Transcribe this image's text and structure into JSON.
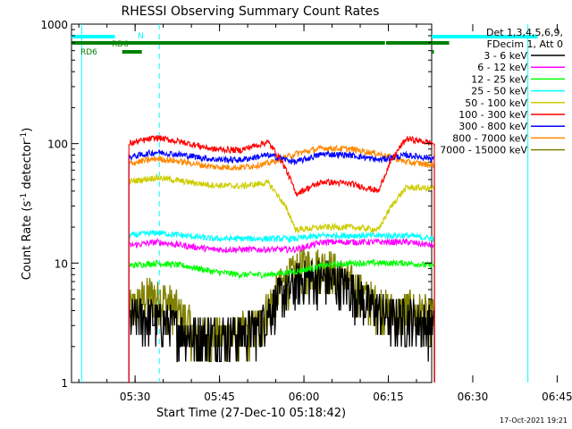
{
  "chart_data": {
    "type": "line",
    "title": "RHESSI Observing Summary Count Rates",
    "xlabel": "Start Time (27-Dec-10 05:18:42)",
    "ylabel_main": "Count Rate (s",
    "ylabel_sup1": "-1",
    "ylabel_mid": " detector",
    "ylabel_sup2": "-1",
    "ylabel_end": ")",
    "y_scale": "log",
    "ylim": [
      1,
      1000
    ],
    "xlim_minutes": [
      0,
      64
    ],
    "x_ticks": [
      {
        "label": "05:30",
        "min": 11.3
      },
      {
        "label": "05:45",
        "min": 26.3
      },
      {
        "label": "06:00",
        "min": 41.3
      },
      {
        "label": "06:15",
        "min": 56.3
      },
      {
        "label": "06:30",
        "min": 71.3
      },
      {
        "label": "06:45",
        "min": 86.3
      }
    ],
    "y_ticks": [
      {
        "label": "1",
        "value": 1
      },
      {
        "label": "10",
        "value": 10
      },
      {
        "label": "100",
        "value": 100
      },
      {
        "label": "1000",
        "value": 1000
      }
    ],
    "legend_header": [
      "Det 1,3,4,5,6,9,",
      "FDecim 1, Att 0"
    ],
    "legend_placement": "right",
    "series": [
      {
        "name": "3 - 6 keV",
        "color": "#000000",
        "values": [
          3.5,
          3.5,
          3.0,
          2.5,
          2.5,
          2.5,
          3.0,
          5.5,
          7.5,
          7.5,
          6.5,
          4.5,
          3.5,
          3.5,
          3.0
        ]
      },
      {
        "name": "6 - 12 keV",
        "color": "#ff00ff",
        "values": [
          14,
          15,
          14,
          13,
          13,
          13,
          13,
          15,
          15,
          15,
          15,
          14
        ]
      },
      {
        "name": "12 - 25 keV",
        "color": "#00ff00",
        "values": [
          9.5,
          10,
          9.5,
          8.5,
          8.0,
          8.0,
          8.5,
          9.5,
          10,
          10,
          10,
          9.5
        ]
      },
      {
        "name": "25 - 50 keV",
        "color": "#00ffff",
        "values": [
          17,
          18,
          17,
          16,
          16,
          16,
          16,
          17,
          17,
          17,
          17,
          16
        ]
      },
      {
        "name": "50 - 100 keV",
        "color": "#cccc00",
        "values": [
          48,
          52,
          48,
          45,
          44,
          47,
          19,
          20,
          20,
          19,
          43,
          42
        ]
      },
      {
        "name": "100 - 300 keV",
        "color": "#ff0000",
        "values": [
          100,
          112,
          102,
          90,
          88,
          103,
          38,
          48,
          46,
          40,
          110,
          100
        ]
      },
      {
        "name": "300 - 800 keV",
        "color": "#0000ff",
        "values": [
          77,
          85,
          80,
          74,
          73,
          80,
          70,
          82,
          80,
          73,
          80,
          75
        ]
      },
      {
        "name": "800 - 7000 keV",
        "color": "#ff8800",
        "values": [
          68,
          75,
          70,
          64,
          63,
          68,
          82,
          92,
          90,
          82,
          70,
          66
        ]
      },
      {
        "name": "7000 - 15000 keV",
        "color": "#808000",
        "values": [
          4.0,
          5.5,
          4.5,
          2.5,
          2.5,
          2.5,
          3.0,
          6.5,
          9.5,
          9.5,
          7.0,
          5.0,
          4.0,
          4.0,
          3.5
        ]
      }
    ],
    "attenuator_bars": {
      "N": {
        "label": "N",
        "color": "#00ffff",
        "spans_min": [
          [
            0,
            7.7
          ],
          [
            82.8,
            88.8
          ]
        ]
      },
      "RD6_top": {
        "label": "RD6",
        "color": "#008000",
        "spans_min": [
          [
            0,
            55.7
          ],
          [
            55.9,
            67.0
          ],
          [
            67.1,
            100
          ]
        ]
      },
      "RD6_low": {
        "label": "RD6",
        "color": "#008000",
        "spans_min": [
          [
            9.0,
            12.5
          ],
          [
            64.4,
            79.3
          ]
        ]
      }
    },
    "vertical_markers_min": {
      "solid_cyan": [
        1.8,
        81.1
      ],
      "dashed_cyan": [
        15.6,
        95.4
      ]
    },
    "timestamp": "17-Oct-2021 19:21"
  }
}
